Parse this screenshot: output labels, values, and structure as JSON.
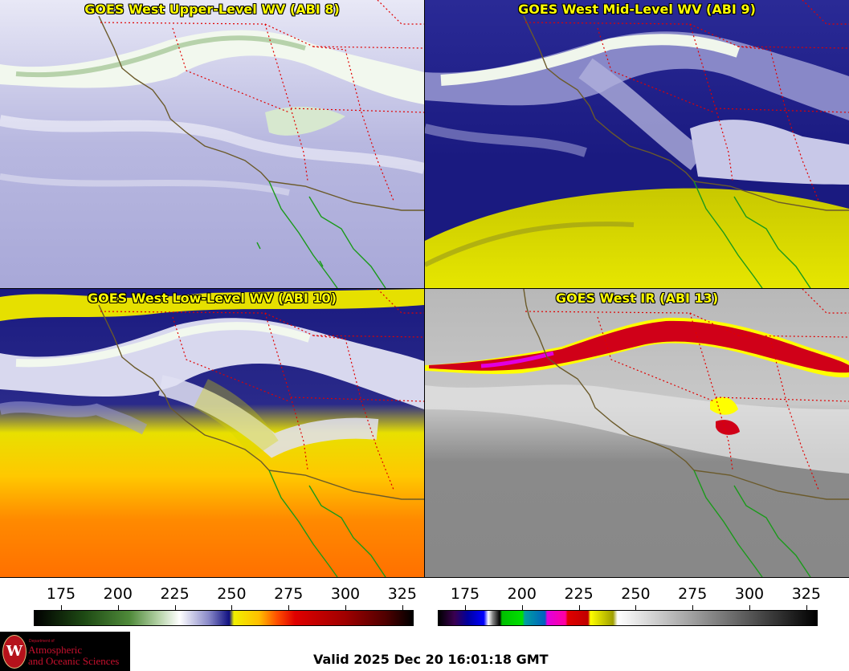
{
  "panels": [
    {
      "title": "GOES West Upper-Level WV (ABI 8)"
    },
    {
      "title": "GOES West Mid-Level WV (ABI 9)"
    },
    {
      "title": "GOES West Low-Level WV (ABI 10)"
    },
    {
      "title": "GOES West IR (ABI 13)"
    }
  ],
  "colorbars": {
    "left": {
      "ticks": [
        "175",
        "200",
        "225",
        "250",
        "275",
        "300",
        "325"
      ],
      "tick_values": [
        175,
        200,
        225,
        250,
        275,
        300,
        325
      ],
      "range": [
        163,
        330
      ],
      "stops": [
        {
          "v": 163,
          "c": "#000000"
        },
        {
          "v": 185,
          "c": "#1e4a14"
        },
        {
          "v": 205,
          "c": "#4f8a3a"
        },
        {
          "v": 218,
          "c": "#b6d3a8"
        },
        {
          "v": 227,
          "c": "#ffffff"
        },
        {
          "v": 240,
          "c": "#8888c8"
        },
        {
          "v": 249,
          "c": "#101080"
        },
        {
          "v": 251,
          "c": "#f0f000"
        },
        {
          "v": 262,
          "c": "#ffc000"
        },
        {
          "v": 270,
          "c": "#ff5000"
        },
        {
          "v": 278,
          "c": "#e00000"
        },
        {
          "v": 300,
          "c": "#a00000"
        },
        {
          "v": 318,
          "c": "#500000"
        },
        {
          "v": 330,
          "c": "#000000"
        }
      ]
    },
    "right": {
      "ticks": [
        "175",
        "200",
        "225",
        "250",
        "275",
        "300",
        "325"
      ],
      "tick_values": [
        175,
        200,
        225,
        250,
        275,
        300,
        325
      ],
      "range": [
        163,
        330
      ],
      "stops": [
        {
          "v": 163,
          "c": "#000000"
        },
        {
          "v": 170,
          "c": "#3a0050"
        },
        {
          "v": 176,
          "c": "#0000a0"
        },
        {
          "v": 183,
          "c": "#0000ff"
        },
        {
          "v": 185,
          "c": "#ffffff"
        },
        {
          "v": 187,
          "c": "#808080"
        },
        {
          "v": 190,
          "c": "#000000"
        },
        {
          "v": 191,
          "c": "#00c000"
        },
        {
          "v": 200,
          "c": "#00e000"
        },
        {
          "v": 201,
          "c": "#00a0a0"
        },
        {
          "v": 210,
          "c": "#0060c0"
        },
        {
          "v": 211,
          "c": "#e000e0"
        },
        {
          "v": 219,
          "c": "#ff00a0"
        },
        {
          "v": 220,
          "c": "#e00000"
        },
        {
          "v": 229,
          "c": "#c00000"
        },
        {
          "v": 230,
          "c": "#ffff00"
        },
        {
          "v": 240,
          "c": "#a0a000"
        },
        {
          "v": 242,
          "c": "#ffffff"
        },
        {
          "v": 330,
          "c": "#000000"
        }
      ]
    }
  },
  "logo": {
    "dept": "Department of",
    "line1": "Atmospheric",
    "line2": "and Oceanic Sciences",
    "seal_letter": "W"
  },
  "footer": {
    "valid": "Valid 2025 Dec 20 16:01:18 GMT"
  },
  "colors": {
    "title_text": "#ffff00",
    "coastline": "#6b5a2a",
    "mexico_coast": "#1a9a1a",
    "state_borders": "#e00000"
  }
}
